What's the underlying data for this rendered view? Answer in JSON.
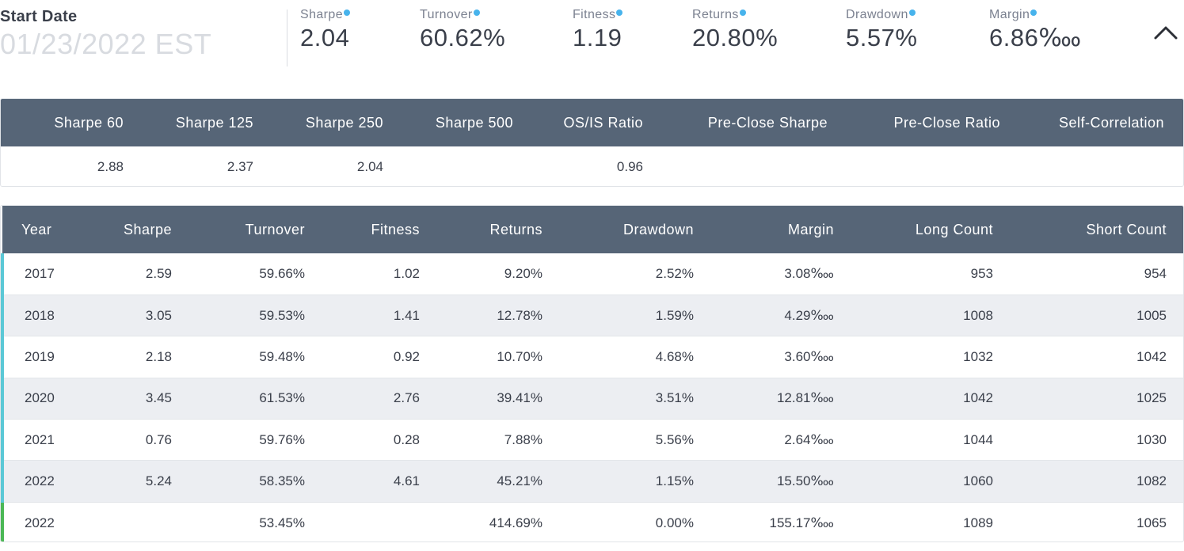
{
  "summary": {
    "start_date_label": "Start Date",
    "start_date_value": "01/23/2022 EST",
    "metrics": [
      {
        "label": "Sharpe",
        "value": "2.04"
      },
      {
        "label": "Turnover",
        "value": "60.62%"
      },
      {
        "label": "Fitness",
        "value": "1.19"
      },
      {
        "label": "Returns",
        "value": "20.80%"
      },
      {
        "label": "Drawdown",
        "value": "5.57%"
      },
      {
        "label": "Margin",
        "value": "6.86‱"
      }
    ],
    "collapse_icon": "chevron-up-icon",
    "dot_color": "#47b3ec"
  },
  "sharpe_table": {
    "headers": [
      "Sharpe 60",
      "Sharpe 125",
      "Sharpe 250",
      "Sharpe 500",
      "OS/IS Ratio",
      "Pre-Close Sharpe",
      "Pre-Close Ratio",
      "Self-Correlation"
    ],
    "row": [
      "2.88",
      "2.37",
      "2.04",
      "",
      "0.96",
      "",
      "",
      ""
    ]
  },
  "yearly_table": {
    "headers": [
      "Year",
      "Sharpe",
      "Turnover",
      "Fitness",
      "Returns",
      "Drawdown",
      "Margin",
      "Long Count",
      "Short Count"
    ],
    "rows": [
      [
        "2017",
        "2.59",
        "59.66%",
        "1.02",
        "9.20%",
        "2.52%",
        "3.08‱",
        "953",
        "954"
      ],
      [
        "2018",
        "3.05",
        "59.53%",
        "1.41",
        "12.78%",
        "1.59%",
        "4.29‱",
        "1008",
        "1005"
      ],
      [
        "2019",
        "2.18",
        "59.48%",
        "0.92",
        "10.70%",
        "4.68%",
        "3.60‱",
        "1032",
        "1042"
      ],
      [
        "2020",
        "3.45",
        "61.53%",
        "2.76",
        "39.41%",
        "3.51%",
        "12.81‱",
        "1042",
        "1025"
      ],
      [
        "2021",
        "0.76",
        "59.76%",
        "0.28",
        "7.88%",
        "5.56%",
        "2.64‱",
        "1044",
        "1030"
      ],
      [
        "2022",
        "5.24",
        "58.35%",
        "4.61",
        "45.21%",
        "1.15%",
        "15.50‱",
        "1060",
        "1082"
      ],
      [
        "2022",
        "",
        "53.45%",
        "",
        "414.69%",
        "0.00%",
        "155.17‱",
        "1089",
        "1065"
      ]
    ],
    "header_color": "#566577",
    "row_marker_color": "#5bc8d6",
    "total_marker_color": "#4cb856"
  }
}
